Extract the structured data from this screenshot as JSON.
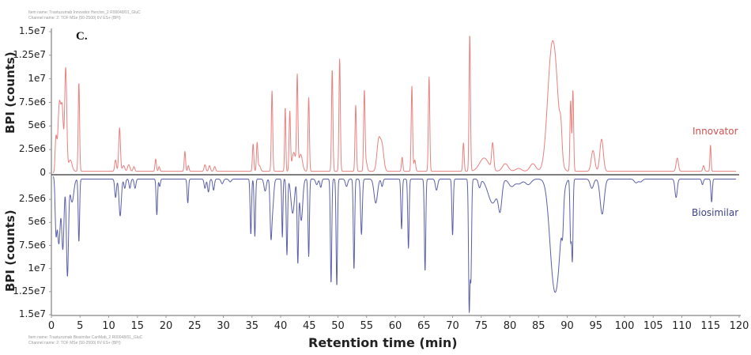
{
  "header": {
    "meta_line1": "Item name: Trastuzumab Innovator Herclon_2 R00048/01_GluC",
    "meta_line2": "Channel name: 2: TOF MSe (50-2500) 6V ES+ (BPI)",
    "panel_label": "C."
  },
  "footer": {
    "meta_line1": "Item name: Trastuzumab Biosimilar CanMab_2 R00048/01_GluC",
    "meta_line2": "Channel name: 2: TOF MSe (50-2500) 6V ES+ (BPI)"
  },
  "colors": {
    "innovator": "#e8817f",
    "biosimilar": "#5b5fa8",
    "axis": "#999999",
    "baseline": "#555555"
  },
  "chart_data": {
    "type": "line",
    "title": "C.",
    "xlabel": "Retention time (min)",
    "ylabel": "BPI (counts)",
    "xlim": [
      0,
      120
    ],
    "ylim": [
      -15000000,
      15000000
    ],
    "grid": false,
    "legend_position": "right",
    "x_ticks": [
      "0",
      "5",
      "10",
      "15",
      "20",
      "25",
      "30",
      "35",
      "40",
      "45",
      "50",
      "55",
      "60",
      "65",
      "70",
      "75",
      "80",
      "85",
      "90",
      "95",
      "100",
      "105",
      "110",
      "115",
      "120"
    ],
    "y_ticks_top": [
      "1.5e7",
      "1.25e7",
      "1e7",
      "7.5e6",
      "5e6",
      "2.5e6",
      "0"
    ],
    "y_ticks_bottom": [
      "2.5e6",
      "5e6",
      "7.5e6",
      "1e7",
      "1.25e7",
      "1.5e7"
    ],
    "series": [
      {
        "name": "Innovator",
        "direction": "up",
        "baseline": 0.2,
        "peaks": [
          [
            0.8,
            3.4,
            0.15
          ],
          [
            1.4,
            7.2,
            0.25
          ],
          [
            1.9,
            6.0,
            0.2
          ],
          [
            2.5,
            10.9,
            0.18
          ],
          [
            3.3,
            1.2,
            0.3
          ],
          [
            4.8,
            9.4,
            0.12
          ],
          [
            11.2,
            1.2,
            0.15
          ],
          [
            11.9,
            4.6,
            0.15
          ],
          [
            12.6,
            0.6,
            0.2
          ],
          [
            13.5,
            0.7,
            0.2
          ],
          [
            14.4,
            0.5,
            0.15
          ],
          [
            18.2,
            1.3,
            0.12
          ],
          [
            18.8,
            0.5,
            0.12
          ],
          [
            23.3,
            2.1,
            0.12
          ],
          [
            23.9,
            0.6,
            0.12
          ],
          [
            26.8,
            0.7,
            0.15
          ],
          [
            27.6,
            0.6,
            0.15
          ],
          [
            28.5,
            0.5,
            0.15
          ],
          [
            35.2,
            2.9,
            0.12
          ],
          [
            35.9,
            3.0,
            0.12
          ],
          [
            36.3,
            0.6,
            0.2
          ],
          [
            38.5,
            8.5,
            0.12
          ],
          [
            40.8,
            6.8,
            0.1
          ],
          [
            41.6,
            6.3,
            0.12
          ],
          [
            42.3,
            2.0,
            0.3
          ],
          [
            42.9,
            9.8,
            0.12
          ],
          [
            43.5,
            1.8,
            0.3
          ],
          [
            44.9,
            7.8,
            0.12
          ],
          [
            49.0,
            10.8,
            0.12
          ],
          [
            50.3,
            11.9,
            0.12
          ],
          [
            53.1,
            7.0,
            0.12
          ],
          [
            54.6,
            8.3,
            0.12
          ],
          [
            54.9,
            1.0,
            0.2
          ],
          [
            57.1,
            3.2,
            0.3
          ],
          [
            57.7,
            2.6,
            0.3
          ],
          [
            61.2,
            1.5,
            0.12
          ],
          [
            62.9,
            9.0,
            0.12
          ],
          [
            63.4,
            1.2,
            0.15
          ],
          [
            65.9,
            10.0,
            0.12
          ],
          [
            71.9,
            3.0,
            0.12
          ],
          [
            73.0,
            14.5,
            0.12
          ],
          [
            75.5,
            1.4,
            0.8
          ],
          [
            77.0,
            2.8,
            0.18
          ],
          [
            79.2,
            0.8,
            0.5
          ],
          [
            81.5,
            0.3,
            0.5
          ],
          [
            84.0,
            0.8,
            0.5
          ],
          [
            87.2,
            11.2,
            0.7
          ],
          [
            88.1,
            6.0,
            0.6
          ],
          [
            88.9,
            2.6,
            0.2
          ],
          [
            90.6,
            7.5,
            0.12
          ],
          [
            91.0,
            8.6,
            0.12
          ],
          [
            94.5,
            2.2,
            0.3
          ],
          [
            96.0,
            3.4,
            0.3
          ],
          [
            109.2,
            1.4,
            0.2
          ],
          [
            113.8,
            0.6,
            0.15
          ],
          [
            115.0,
            2.8,
            0.1
          ]
        ]
      },
      {
        "name": "Biosimilar",
        "direction": "down",
        "baseline": 0.3,
        "peaks": [
          [
            0.8,
            5.2,
            0.15
          ],
          [
            1.3,
            7.0,
            0.25
          ],
          [
            2.0,
            7.5,
            0.2
          ],
          [
            2.8,
            10.5,
            0.18
          ],
          [
            3.6,
            2.5,
            0.3
          ],
          [
            4.8,
            6.8,
            0.12
          ],
          [
            11.2,
            2.0,
            0.15
          ],
          [
            12.0,
            4.0,
            0.2
          ],
          [
            12.8,
            1.0,
            0.15
          ],
          [
            13.7,
            1.0,
            0.15
          ],
          [
            14.6,
            1.0,
            0.15
          ],
          [
            18.4,
            3.9,
            0.12
          ],
          [
            18.9,
            0.8,
            0.12
          ],
          [
            23.8,
            2.6,
            0.12
          ],
          [
            26.8,
            1.0,
            0.15
          ],
          [
            27.4,
            1.4,
            0.15
          ],
          [
            28.3,
            1.2,
            0.15
          ],
          [
            29.8,
            0.5,
            0.2
          ],
          [
            31.2,
            0.3,
            0.2
          ],
          [
            34.8,
            6.0,
            0.12
          ],
          [
            35.5,
            6.2,
            0.12
          ],
          [
            37.3,
            1.3,
            0.2
          ],
          [
            38.3,
            5.5,
            0.15
          ],
          [
            38.6,
            3.0,
            0.2
          ],
          [
            40.3,
            6.3,
            0.1
          ],
          [
            41.1,
            8.2,
            0.12
          ],
          [
            42.1,
            3.7,
            0.3
          ],
          [
            43.0,
            8.9,
            0.12
          ],
          [
            43.6,
            4.5,
            0.25
          ],
          [
            44.9,
            8.4,
            0.12
          ],
          [
            46.3,
            0.6,
            0.2
          ],
          [
            47.0,
            0.9,
            0.15
          ],
          [
            48.8,
            11.3,
            0.12
          ],
          [
            49.8,
            11.6,
            0.12
          ],
          [
            51.5,
            0.8,
            0.2
          ],
          [
            52.8,
            9.8,
            0.12
          ],
          [
            54.1,
            6.0,
            0.15
          ],
          [
            56.6,
            2.6,
            0.3
          ],
          [
            57.7,
            0.8,
            0.15
          ],
          [
            61.1,
            5.4,
            0.12
          ],
          [
            62.3,
            7.5,
            0.12
          ],
          [
            65.2,
            10.0,
            0.12
          ],
          [
            67.2,
            1.2,
            0.2
          ],
          [
            70.0,
            6.1,
            0.12
          ],
          [
            72.9,
            14.0,
            0.12
          ],
          [
            73.2,
            10.5,
            0.12
          ],
          [
            74.7,
            0.9,
            0.2
          ],
          [
            77.0,
            2.6,
            0.8
          ],
          [
            78.3,
            2.9,
            0.3
          ],
          [
            80.3,
            0.8,
            0.5
          ],
          [
            81.6,
            0.5,
            0.5
          ],
          [
            83.2,
            0.6,
            0.5
          ],
          [
            87.6,
            9.8,
            0.7
          ],
          [
            88.5,
            5.5,
            0.6
          ],
          [
            89.2,
            2.9,
            0.15
          ],
          [
            90.6,
            6.5,
            0.12
          ],
          [
            90.9,
            8.7,
            0.12
          ],
          [
            94.3,
            1.0,
            0.3
          ],
          [
            96.1,
            3.8,
            0.35
          ],
          [
            102.0,
            0.4,
            0.3
          ],
          [
            102.8,
            0.3,
            0.3
          ],
          [
            109.0,
            2.0,
            0.2
          ],
          [
            113.6,
            0.6,
            0.15
          ],
          [
            115.2,
            2.5,
            0.12
          ]
        ]
      }
    ],
    "units": {
      "y_scale": "1e6 counts per peak height unit",
      "peak_format": "[retention_time_min, height_1e6, width_min]"
    }
  },
  "legend": {
    "innovator": "Innovator",
    "biosimilar": "Biosimilar"
  }
}
